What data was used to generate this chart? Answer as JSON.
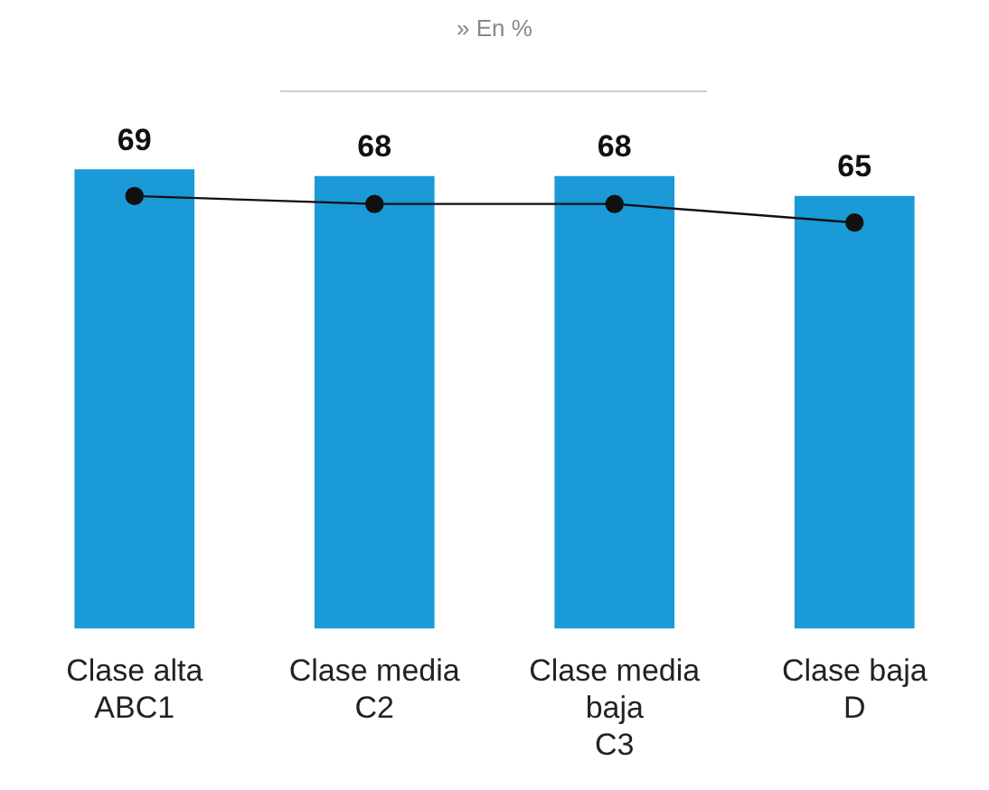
{
  "chart_data": {
    "type": "bar",
    "title": "» En %",
    "categories": [
      "Clase alta\nABC1",
      "Clase media\nC2",
      "Clase media\nbaja\nC3",
      "Clase baja\nD"
    ],
    "series": [
      {
        "color": "#1b9ad8",
        "values": [
          69,
          68,
          68,
          65
        ],
        "value_labels": [
          "69",
          "68",
          "68",
          "65"
        ]
      },
      {
        "type": "line",
        "color": "#111111",
        "values": [
          65,
          63.8,
          63.8,
          61
        ],
        "marker": "circle"
      }
    ],
    "tick_labels": "x",
    "grid": false,
    "legend": false
  }
}
